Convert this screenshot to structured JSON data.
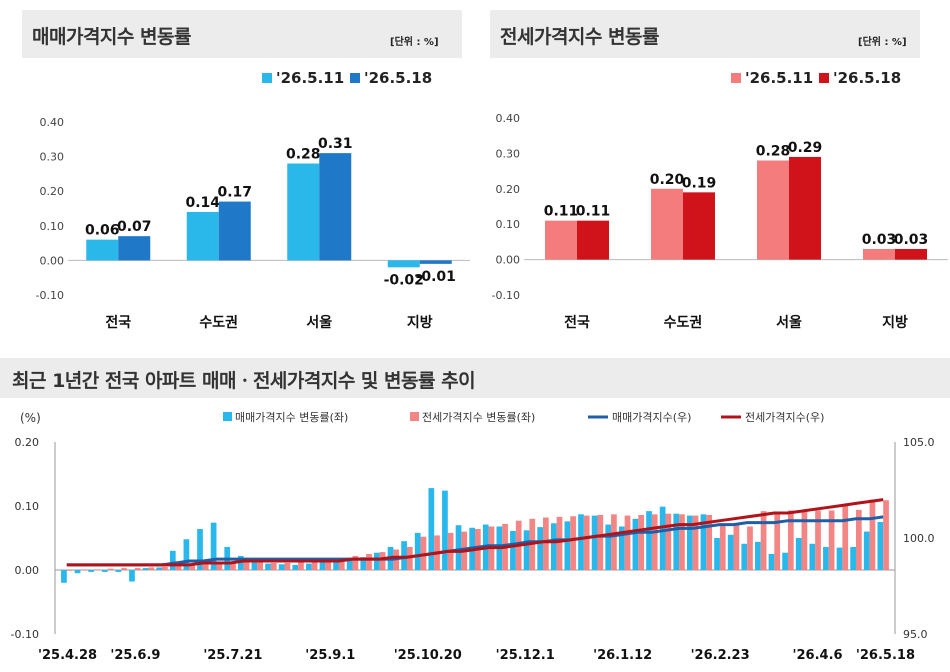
{
  "chart_data": [
    {
      "type": "bar",
      "title": "매매가격지수 변동률",
      "unit_label": "[단위 : %]",
      "categories": [
        "전국",
        "수도권",
        "서울",
        "지방"
      ],
      "series": [
        {
          "name": "'26.5.11",
          "values": [
            0.06,
            0.14,
            0.28,
            -0.02
          ],
          "color": "#2ab7ea"
        },
        {
          "name": "'26.5.18",
          "values": [
            0.07,
            0.17,
            0.31,
            -0.01
          ],
          "color": "#1f78c8"
        }
      ],
      "ylim": [
        -0.1,
        0.4
      ],
      "yticks": [
        "-0.10",
        "0.00",
        "0.10",
        "0.20",
        "0.30",
        "0.40"
      ],
      "legend": "top-right"
    },
    {
      "type": "bar",
      "title": "전세가격지수 변동률",
      "unit_label": "[단위 : %]",
      "categories": [
        "전국",
        "수도권",
        "서울",
        "지방"
      ],
      "series": [
        {
          "name": "'26.5.11",
          "values": [
            0.11,
            0.2,
            0.28,
            0.03
          ],
          "color": "#f47c7c"
        },
        {
          "name": "'26.5.18",
          "values": [
            0.11,
            0.19,
            0.29,
            0.03
          ],
          "color": "#d0121b"
        }
      ],
      "ylim": [
        -0.1,
        0.4
      ],
      "yticks": [
        "-0.10",
        "0.00",
        "0.10",
        "0.20",
        "0.30",
        "0.40"
      ],
      "legend": "top-right"
    },
    {
      "type": "bar",
      "title": "최근 1년간 전국 아파트 매매ㆍ전세가격지수 및 변동률 추이",
      "ylabel": "(%)",
      "ylim": [
        -0.1,
        0.2
      ],
      "yticks": [
        "-0.10",
        "0.00",
        "0.10",
        "0.20"
      ],
      "y2lim": [
        95.0,
        105.0
      ],
      "y2ticks": [
        "95.0",
        "100.0",
        "105.0"
      ],
      "xticks": [
        "'25.4.28",
        "'25.6.9",
        "'25.7.21",
        "'25.9.1",
        "'25.10.20",
        "'25.12.1",
        "'26.1.12",
        "'26.2.23",
        "'26.4.6",
        "'26.5.18"
      ],
      "legend_entries": [
        "매매가격지수 변동률(좌)",
        "전세가격지수 변동률(좌)",
        "매매가격지수(우)",
        "전세가격지수(우)"
      ],
      "series": [
        {
          "name": "매매가격지수 변동률(좌)",
          "axis": "left",
          "color": "#29b8ec",
          "values": [
            -0.02,
            -0.005,
            -0.003,
            -0.003,
            -0.003,
            -0.018,
            0.003,
            0.004,
            0.03,
            0.048,
            0.064,
            0.074,
            0.036,
            0.022,
            0.013,
            0.01,
            0.009,
            0.008,
            0.01,
            0.012,
            0.014,
            0.017,
            0.02,
            0.027,
            0.036,
            0.045,
            0.058,
            0.128,
            0.124,
            0.07,
            0.066,
            0.071,
            0.068,
            0.061,
            0.062,
            0.067,
            0.073,
            0.076,
            0.087,
            0.085,
            0.071,
            0.068,
            0.08,
            0.092,
            0.099,
            0.088,
            0.085,
            0.087,
            0.05,
            0.055,
            0.041,
            0.044,
            0.025,
            0.027,
            0.05,
            0.041,
            0.036,
            0.035,
            0.036,
            0.06,
            0.075
          ]
        },
        {
          "name": "전세가격지수 변동률(좌)",
          "axis": "left",
          "color": "#f48585",
          "values": [
            0.0,
            0.001,
            0.001,
            0.002,
            0.003,
            0.003,
            0.004,
            0.005,
            0.006,
            0.007,
            0.009,
            0.011,
            0.012,
            0.012,
            0.012,
            0.011,
            0.011,
            0.012,
            0.013,
            0.015,
            0.018,
            0.022,
            0.025,
            0.028,
            0.032,
            0.036,
            0.052,
            0.054,
            0.058,
            0.06,
            0.064,
            0.068,
            0.072,
            0.077,
            0.08,
            0.082,
            0.083,
            0.084,
            0.085,
            0.086,
            0.087,
            0.085,
            0.086,
            0.087,
            0.088,
            0.087,
            0.085,
            0.086,
            0.069,
            0.07,
            0.068,
            0.092,
            0.091,
            0.093,
            0.094,
            0.093,
            0.093,
            0.1,
            0.094,
            0.11,
            0.109
          ]
        },
        {
          "name": "매매가격지수(우)",
          "axis": "right",
          "color": "#1f5fa8",
          "values": [
            98.6,
            98.6,
            98.6,
            98.6,
            98.6,
            98.6,
            98.6,
            98.6,
            98.7,
            98.8,
            98.8,
            98.9,
            98.9,
            98.9,
            98.9,
            98.9,
            98.9,
            98.9,
            98.9,
            98.9,
            98.9,
            98.9,
            98.9,
            98.9,
            98.9,
            99.0,
            99.1,
            99.2,
            99.3,
            99.4,
            99.5,
            99.6,
            99.6,
            99.7,
            99.8,
            99.8,
            99.9,
            99.9,
            100.0,
            100.1,
            100.1,
            100.2,
            100.3,
            100.3,
            100.4,
            100.5,
            100.5,
            100.6,
            100.7,
            100.7,
            100.8,
            100.8,
            100.8,
            100.9,
            100.9,
            100.9,
            100.9,
            100.9,
            101.0,
            101.0,
            101.1
          ]
        },
        {
          "name": "전세가격지수(우)",
          "axis": "right",
          "color": "#b0141a",
          "values": [
            98.6,
            98.6,
            98.6,
            98.6,
            98.6,
            98.6,
            98.6,
            98.6,
            98.6,
            98.6,
            98.7,
            98.7,
            98.7,
            98.8,
            98.8,
            98.8,
            98.8,
            98.8,
            98.8,
            98.8,
            98.8,
            98.9,
            98.9,
            98.9,
            99.0,
            99.0,
            99.1,
            99.2,
            99.3,
            99.3,
            99.4,
            99.5,
            99.5,
            99.6,
            99.7,
            99.8,
            99.8,
            99.9,
            100.0,
            100.1,
            100.2,
            100.3,
            100.4,
            100.5,
            100.6,
            100.7,
            100.7,
            100.8,
            100.9,
            101.0,
            101.1,
            101.2,
            101.3,
            101.3,
            101.4,
            101.5,
            101.6,
            101.7,
            101.8,
            101.9,
            102.0
          ]
        }
      ]
    }
  ]
}
